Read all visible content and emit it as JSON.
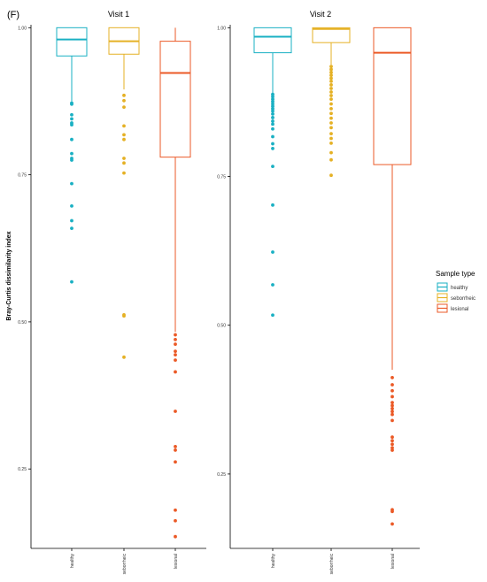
{
  "figure_label": "(F)",
  "legend": {
    "title": "Sample type",
    "items": [
      {
        "label": "healthy",
        "color": "#1AB0C3"
      },
      {
        "label": "seborrheic",
        "color": "#E5B125"
      },
      {
        "label": "lesional",
        "color": "#EB5A27"
      }
    ]
  },
  "chart_data": [
    {
      "type": "box",
      "title": "Visit 1",
      "xlabel": "",
      "ylabel": "Bray-Curtis dissimilarity index",
      "categories": [
        "healthy",
        "seborrheic",
        "lesional"
      ],
      "yticks": [
        "0.25",
        "0.50",
        "0.75",
        "1.00"
      ],
      "ylim": [
        0.115,
        1.005
      ],
      "grid": false,
      "boxes": [
        {
          "name": "healthy",
          "whisker_low": 0.875,
          "q1": 0.952,
          "median": 0.98,
          "q3": 1.0,
          "whisker_high": 1.0,
          "outliers": [
            0.872,
            0.87,
            0.852,
            0.845,
            0.838,
            0.835,
            0.81,
            0.786,
            0.778,
            0.775,
            0.735,
            0.697,
            0.672,
            0.659,
            0.568
          ]
        },
        {
          "name": "seborrheic",
          "whisker_low": 0.895,
          "q1": 0.955,
          "median": 0.977,
          "q3": 1.0,
          "whisker_high": 1.0,
          "outliers": [
            0.885,
            0.876,
            0.865,
            0.833,
            0.818,
            0.81,
            0.778,
            0.77,
            0.753,
            0.512,
            0.51,
            0.44
          ]
        },
        {
          "name": "lesional",
          "whisker_low": 0.483,
          "q1": 0.78,
          "median": 0.923,
          "q3": 0.977,
          "whisker_high": 1.0,
          "outliers": [
            0.478,
            0.47,
            0.462,
            0.45,
            0.444,
            0.435,
            0.415,
            0.348,
            0.288,
            0.282,
            0.262,
            0.18,
            0.162,
            0.135
          ]
        }
      ]
    },
    {
      "type": "box",
      "title": "Visit 2",
      "xlabel": "",
      "ylabel": "",
      "categories": [
        "healthy",
        "seborrheic",
        "lesional"
      ],
      "yticks": [
        "0.25",
        "0.50",
        "0.75",
        "1.00"
      ],
      "ylim": [
        0.125,
        1.005
      ],
      "grid": false,
      "boxes": [
        {
          "name": "healthy",
          "whisker_low": 0.89,
          "q1": 0.958,
          "median": 0.985,
          "q3": 1.0,
          "whisker_high": 1.0,
          "outliers": [
            0.888,
            0.884,
            0.88,
            0.876,
            0.872,
            0.868,
            0.864,
            0.86,
            0.855,
            0.849,
            0.843,
            0.838,
            0.83,
            0.817,
            0.805,
            0.797,
            0.767,
            0.702,
            0.623,
            0.568,
            0.517
          ]
        },
        {
          "name": "seborrheic",
          "whisker_low": 0.938,
          "q1": 0.975,
          "median": 0.998,
          "q3": 1.0,
          "whisker_high": 1.0,
          "outliers": [
            0.935,
            0.93,
            0.925,
            0.92,
            0.915,
            0.91,
            0.904,
            0.898,
            0.892,
            0.886,
            0.88,
            0.872,
            0.864,
            0.856,
            0.848,
            0.84,
            0.832,
            0.822,
            0.814,
            0.806,
            0.79,
            0.778,
            0.752
          ]
        },
        {
          "name": "lesional",
          "whisker_low": 0.425,
          "q1": 0.77,
          "median": 0.958,
          "q3": 1.0,
          "whisker_high": 1.0,
          "outliers": [
            0.412,
            0.4,
            0.39,
            0.38,
            0.37,
            0.365,
            0.36,
            0.355,
            0.35,
            0.34,
            0.312,
            0.306,
            0.3,
            0.294,
            0.29,
            0.19,
            0.187,
            0.166
          ]
        }
      ]
    }
  ]
}
